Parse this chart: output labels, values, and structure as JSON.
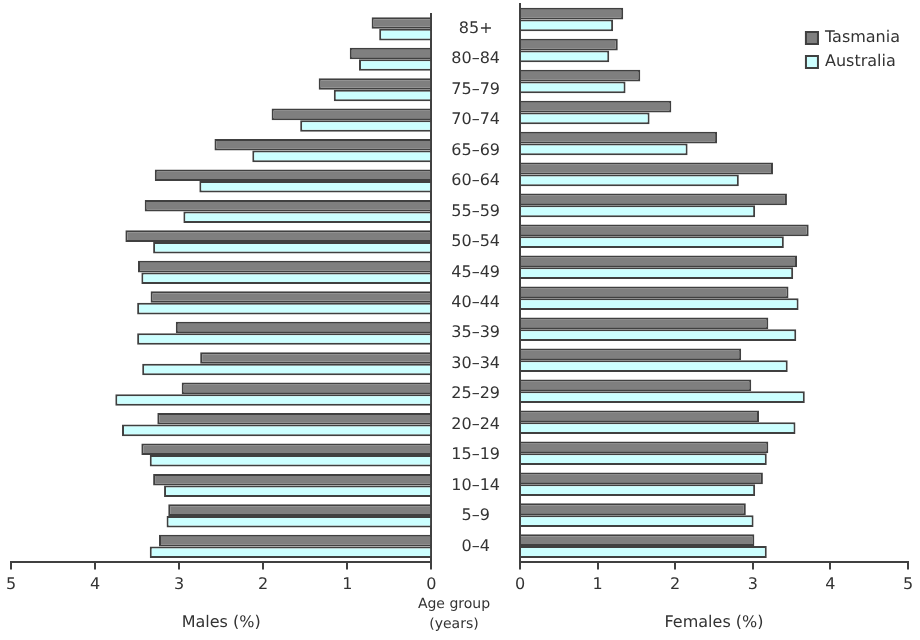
{
  "chart_data": [
    {
      "type": "bar",
      "orientation": "horizontal",
      "xlabel": "Males (%)",
      "ylabel": "Age group (years)",
      "categories": [
        "85+",
        "80–84",
        "75–79",
        "70–74",
        "65–69",
        "60–64",
        "55–59",
        "50–54",
        "45–49",
        "40–44",
        "35–39",
        "30–34",
        "25–29",
        "20–24",
        "15–19",
        "10–14",
        "5–9",
        "0–4"
      ],
      "xlim": [
        5,
        0
      ],
      "xticks": [
        5,
        4,
        3,
        2,
        1,
        0
      ],
      "grid": false,
      "legend": false,
      "series": [
        {
          "color": "#7f7f7f",
          "values": [
            0.71,
            0.97,
            1.34,
            1.9,
            2.58,
            3.29,
            3.41,
            3.64,
            3.49,
            3.34,
            3.04,
            2.75,
            2.97,
            3.26,
            3.45,
            3.31,
            3.13,
            3.24
          ]
        },
        {
          "color": "#ccffff",
          "values": [
            0.62,
            0.86,
            1.16,
            1.56,
            2.13,
            2.76,
            2.95,
            3.31,
            3.45,
            3.5,
            3.5,
            3.44,
            3.76,
            3.68,
            3.35,
            3.18,
            3.15,
            3.35
          ]
        }
      ]
    },
    {
      "type": "bar",
      "orientation": "horizontal",
      "xlabel": "Females (%)",
      "categories": [
        null,
        null,
        null,
        null,
        null,
        null,
        null,
        null,
        null,
        null,
        null,
        null,
        null,
        null,
        null,
        null,
        null,
        null
      ],
      "xlim": [
        0,
        5
      ],
      "xticks": [
        0,
        1,
        2,
        3,
        4,
        5
      ],
      "grid": false,
      "legend": "top right",
      "tick_labels": "x",
      "series": [
        {
          "name": "Tasmania",
          "color": "#7f7f7f",
          "values": [
            1.33,
            1.26,
            1.55,
            1.95,
            2.54,
            3.26,
            3.44,
            3.72,
            3.57,
            3.46,
            3.2,
            2.85,
            2.98,
            3.08,
            3.2,
            3.13,
            2.91,
            3.02
          ]
        },
        {
          "name": "Australia",
          "color": "#ccffff",
          "values": [
            1.2,
            1.15,
            1.36,
            1.67,
            2.16,
            2.82,
            3.03,
            3.4,
            3.52,
            3.59,
            3.56,
            3.45,
            3.67,
            3.55,
            3.18,
            3.03,
            3.01,
            3.18
          ]
        }
      ]
    }
  ]
}
